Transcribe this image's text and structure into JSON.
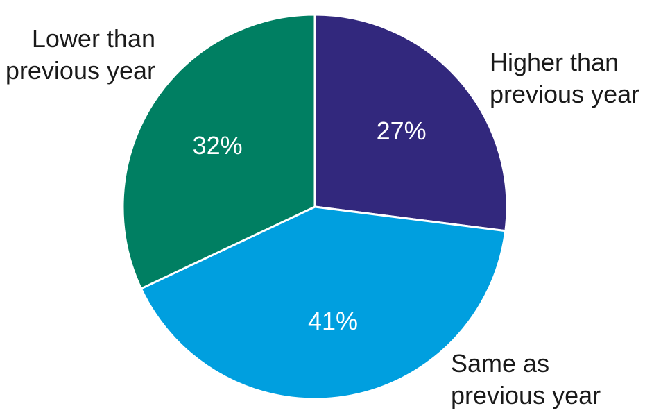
{
  "chart_data": {
    "type": "pie",
    "start_angle_deg": 0,
    "direction": "clockwise",
    "slices": [
      {
        "label_lines": [
          "Higher than",
          "previous year"
        ],
        "value": 27,
        "value_label": "27%",
        "color": "#32287d"
      },
      {
        "label_lines": [
          "Same as",
          "previous year"
        ],
        "value": 41,
        "value_label": "41%",
        "color": "#009fdf"
      },
      {
        "label_lines": [
          "Lower than",
          "previous year"
        ],
        "value": 32,
        "value_label": "32%",
        "color": "#007f62"
      }
    ],
    "slice_border_color": "#ffffff"
  }
}
